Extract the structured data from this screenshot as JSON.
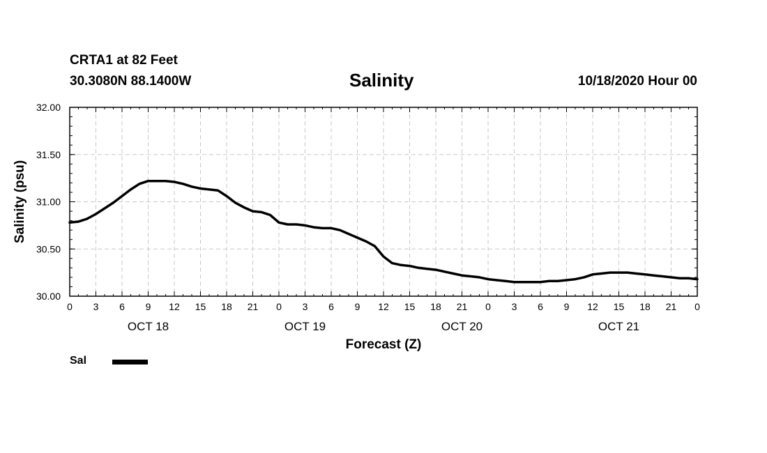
{
  "header": {
    "station": "CRTA1 at 82 Feet",
    "coordinates": "30.3080N 88.1400W",
    "title": "Salinity",
    "datetime": "10/18/2020 Hour 00"
  },
  "legend": {
    "label": "Sal",
    "color": "#000000"
  },
  "chart_data": {
    "type": "line",
    "title": "Salinity",
    "xlabel": "Forecast (Z)",
    "ylabel": "Salinity (psu)",
    "xlim": [
      0,
      72
    ],
    "ylim": [
      30.0,
      32.0
    ],
    "y_ticks": [
      "30.00",
      "30.50",
      "31.00",
      "31.50",
      "32.00"
    ],
    "x_tick_hours": [
      0,
      3,
      6,
      9,
      12,
      15,
      18,
      21,
      24,
      27,
      30,
      33,
      36,
      39,
      42,
      45,
      48,
      51,
      54,
      57,
      60,
      63,
      66,
      69,
      72
    ],
    "x_tick_labels": [
      "0",
      "3",
      "6",
      "9",
      "12",
      "15",
      "18",
      "21",
      "0",
      "3",
      "6",
      "9",
      "12",
      "15",
      "18",
      "21",
      "0",
      "3",
      "6",
      "9",
      "12",
      "15",
      "18",
      "21",
      "0"
    ],
    "day_labels": [
      {
        "hour": 9,
        "label": "OCT 18"
      },
      {
        "hour": 27,
        "label": "OCT 19"
      },
      {
        "hour": 45,
        "label": "OCT 20"
      },
      {
        "hour": 63,
        "label": "OCT 21"
      }
    ],
    "grid": true,
    "series": [
      {
        "name": "Sal",
        "color": "#000000",
        "x": [
          0,
          1,
          2,
          3,
          4,
          5,
          6,
          7,
          8,
          9,
          10,
          11,
          12,
          13,
          14,
          15,
          16,
          17,
          18,
          19,
          20,
          21,
          22,
          23,
          24,
          25,
          26,
          27,
          28,
          29,
          30,
          31,
          32,
          33,
          34,
          35,
          36,
          37,
          38,
          39,
          40,
          41,
          42,
          43,
          44,
          45,
          46,
          47,
          48,
          49,
          50,
          51,
          52,
          53,
          54,
          55,
          56,
          57,
          58,
          59,
          60,
          61,
          62,
          63,
          64,
          65,
          66,
          67,
          68,
          69,
          70,
          71,
          72
        ],
        "values": [
          30.78,
          30.79,
          30.82,
          30.87,
          30.93,
          30.99,
          31.06,
          31.13,
          31.19,
          31.22,
          31.22,
          31.22,
          31.21,
          31.19,
          31.16,
          31.14,
          31.13,
          31.12,
          31.06,
          30.99,
          30.94,
          30.9,
          30.89,
          30.86,
          30.78,
          30.76,
          30.76,
          30.75,
          30.73,
          30.72,
          30.72,
          30.7,
          30.66,
          30.62,
          30.58,
          30.53,
          30.42,
          30.35,
          30.33,
          30.32,
          30.3,
          30.29,
          30.28,
          30.26,
          30.24,
          30.22,
          30.21,
          30.2,
          30.18,
          30.17,
          30.16,
          30.15,
          30.15,
          30.15,
          30.15,
          30.16,
          30.16,
          30.17,
          30.18,
          30.2,
          30.23,
          30.24,
          30.25,
          30.25,
          30.25,
          30.24,
          30.23,
          30.22,
          30.21,
          30.2,
          30.19,
          30.19,
          30.18
        ]
      }
    ]
  }
}
